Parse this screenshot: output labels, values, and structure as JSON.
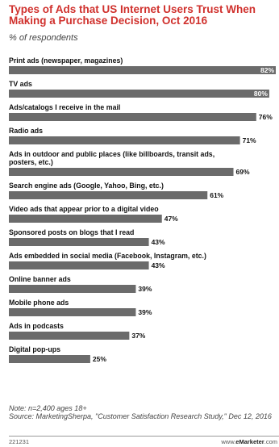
{
  "chart_data": {
    "type": "bar",
    "orientation": "horizontal",
    "title": "Types of Ads that US Internet Users Trust When Making a Purchase Decision, Oct 2016",
    "subtitle": "% of respondents",
    "value_suffix": "%",
    "xlim": [
      0,
      82
    ],
    "grid": false,
    "bar_color": "#6b6b6b",
    "title_color": "#d0312d",
    "categories": [
      [
        "Print ads (newspaper, magazines)"
      ],
      [
        "TV ads"
      ],
      [
        "Ads/catalogs I receive in the mail"
      ],
      [
        "Radio ads"
      ],
      [
        "Ads in outdoor and public places (like billboards, transit ads,",
        "posters, etc.)"
      ],
      [
        "Search engine ads (Google, Yahoo, Bing, etc.)"
      ],
      [
        "Video ads that appear prior to a digital video"
      ],
      [
        "Sponsored posts on blogs that I read"
      ],
      [
        "Ads embedded in social media (Facebook, Instagram, etc.)"
      ],
      [
        "Online banner ads"
      ],
      [
        "Mobile phone ads"
      ],
      [
        "Ads in podcasts"
      ],
      [
        "Digital pop-ups"
      ]
    ],
    "values": [
      82,
      80,
      76,
      71,
      69,
      61,
      47,
      43,
      43,
      39,
      39,
      37,
      25
    ]
  },
  "footer": {
    "note": "Note: n=2,400 ages 18+",
    "source": "Source: MarketingSherpa, \"Customer Satisfaction Research Study,\" Dec 12, 2016",
    "id": "221231",
    "brand_prefix": "www.",
    "brand_name": "eMarketer",
    "brand_suffix": ".com"
  }
}
